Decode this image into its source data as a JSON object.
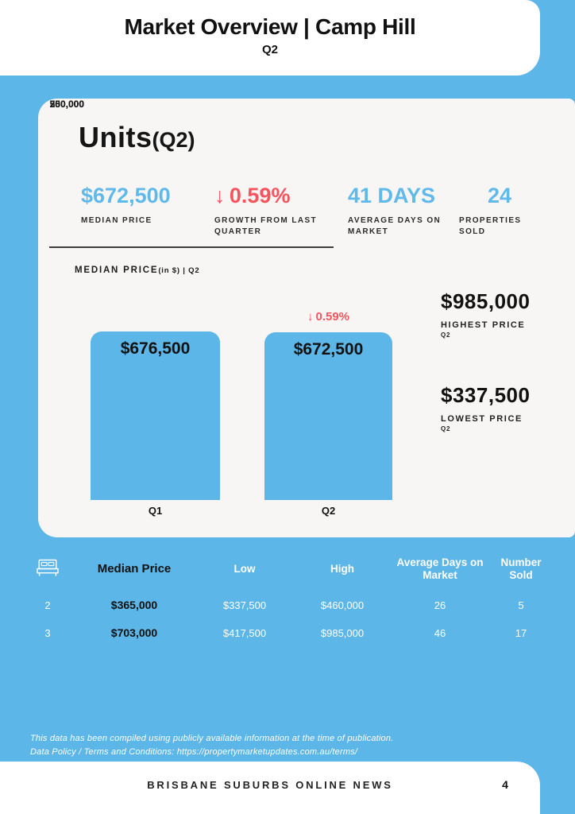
{
  "colors": {
    "page_background": "#5CB6E7",
    "card_background": "#F7F6F4",
    "accent_blue": "#5FB9EB",
    "accent_red": "#F4545E",
    "text_dark": "#111111",
    "text_white": "#FFFFFF"
  },
  "header": {
    "title": "Market Overview | Camp Hill",
    "subtitle": "Q2"
  },
  "card": {
    "title": "Units",
    "title_suffix": "(Q2)",
    "stats": [
      {
        "value": "$672,500",
        "label": "MEDIAN PRICE"
      },
      {
        "arrow": "↓",
        "value": "0.59%",
        "label": "GROWTH FROM LAST QUARTER"
      },
      {
        "value": "41 DAYS",
        "label": "AVERAGE DAYS ON MARKET"
      },
      {
        "value": "24",
        "label": "PROPERTIES SOLD"
      }
    ],
    "highlights": [
      {
        "value": "$985,000",
        "label": "HIGHEST PRICE",
        "sublabel": "Q2"
      },
      {
        "value": "$337,500",
        "label": "LOWEST PRICE",
        "sublabel": "Q2"
      }
    ]
  },
  "chart_data": {
    "type": "bar",
    "title_parts": {
      "main": "MEDIAN PRICE",
      "unit": "(in $)",
      "period": " | Q2"
    },
    "categories": [
      "Q1",
      "Q2"
    ],
    "values": [
      676500,
      672500
    ],
    "value_labels": [
      "$676,500",
      "$672,500"
    ],
    "annotation": {
      "arrow": "↓",
      "text": "0.59%",
      "target_category": "Q2"
    },
    "y_ticks": [
      "750,000",
      "500,000",
      "250,000",
      "0"
    ],
    "ylim": [
      0,
      750000
    ],
    "grid": false,
    "bar_color": "#5CB6E7"
  },
  "table": {
    "bed_icon": "bed-icon",
    "headers": {
      "median": "Median Price",
      "low": "Low",
      "high": "High",
      "avg_days": "Average Days on Market",
      "sold": "Number Sold"
    },
    "rows": [
      {
        "beds": "2",
        "median": "$365,000",
        "low": "$337,500",
        "high": "$460,000",
        "avg_days": "26",
        "sold": "5"
      },
      {
        "beds": "3",
        "median": "$703,000",
        "low": "$417,500",
        "high": "$985,000",
        "avg_days": "46",
        "sold": "17"
      }
    ]
  },
  "disclaimer": {
    "line1": "This data has been compiled using publicly available information at the time of publication.",
    "line2": "Data Policy / Terms and Conditions: https://propertymarketupdates.com.au/terms/"
  },
  "footer": {
    "publication": "BRISBANE SUBURBS ONLINE NEWS",
    "page_number": "4"
  }
}
